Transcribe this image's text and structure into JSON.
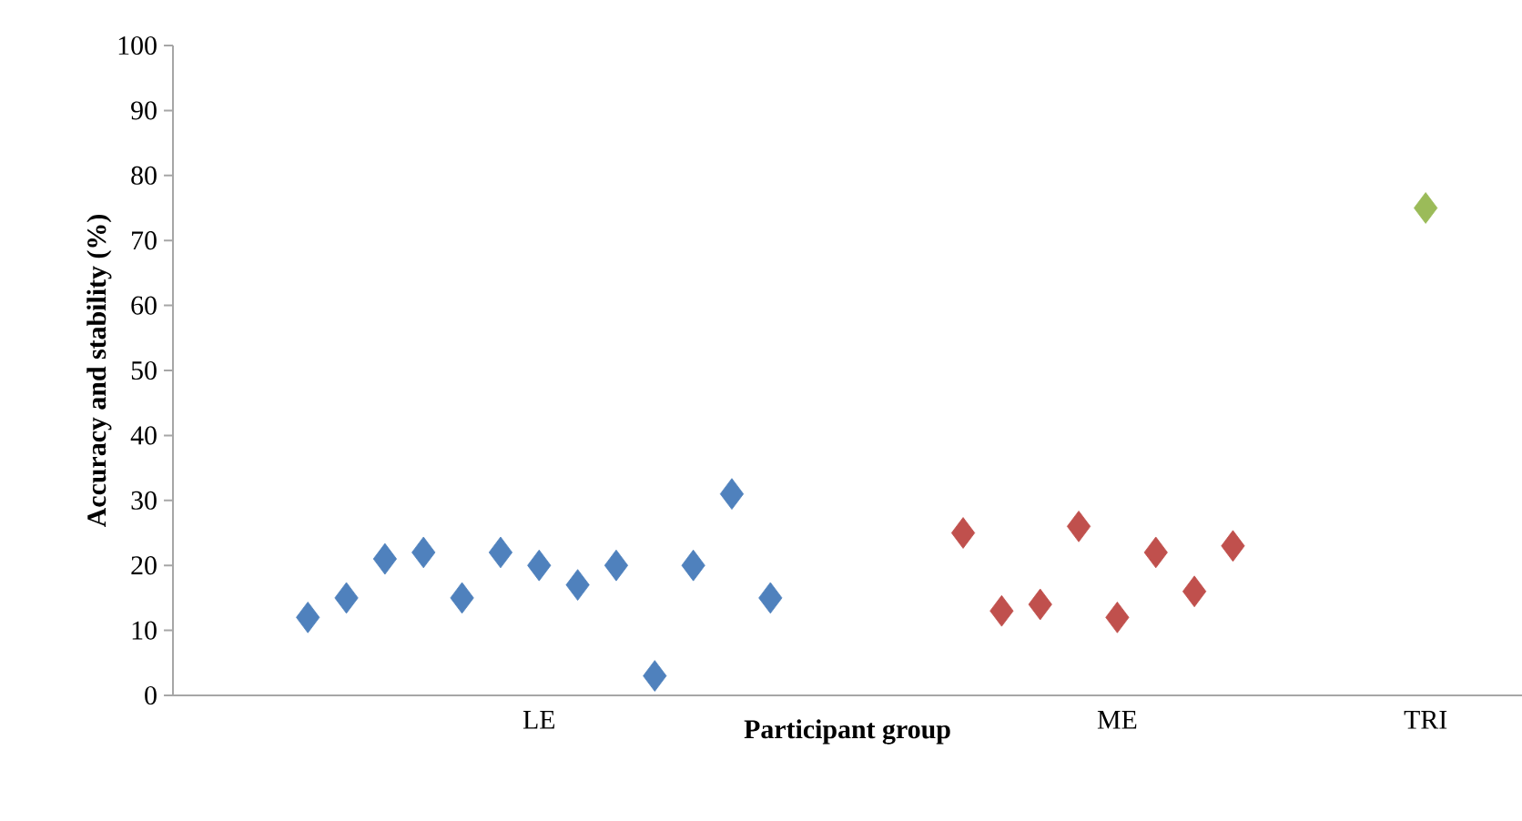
{
  "chart_data": {
    "type": "scatter",
    "xlabel": "Participant group",
    "ylabel": "Accuracy and stability (%)",
    "marker": "diamond",
    "categories": [
      null,
      null,
      null,
      null,
      null,
      null,
      null,
      null,
      null,
      "LE",
      null,
      null,
      null,
      null,
      null,
      null,
      null,
      null,
      null,
      null,
      null,
      null,
      null,
      null,
      "ME",
      null,
      null,
      null,
      null,
      null,
      null,
      null,
      "TRI",
      null,
      null
    ],
    "ylim": [
      0,
      100
    ],
    "yticks": [
      0,
      10,
      20,
      30,
      40,
      50,
      60,
      70,
      80,
      90,
      100
    ],
    "series": [
      {
        "color": "#4f81bd",
        "values": [
          null,
          null,
          null,
          12,
          15,
          21,
          22,
          15,
          22,
          20,
          17,
          20,
          3,
          20,
          31,
          15,
          null,
          null,
          null,
          null,
          null,
          null,
          null,
          null,
          null,
          null,
          null,
          null,
          null,
          null,
          null,
          null,
          null,
          null,
          null
        ]
      },
      {
        "color": "#c0504d",
        "values": [
          null,
          null,
          null,
          null,
          null,
          null,
          null,
          null,
          null,
          null,
          null,
          null,
          null,
          null,
          null,
          null,
          null,
          null,
          null,
          null,
          25,
          13,
          14,
          26,
          12,
          22,
          16,
          23,
          null,
          null,
          null,
          null,
          null,
          null,
          null
        ]
      },
      {
        "color": "#9bbb59",
        "values": [
          null,
          null,
          null,
          null,
          null,
          null,
          null,
          null,
          null,
          null,
          null,
          null,
          null,
          null,
          null,
          null,
          null,
          null,
          null,
          null,
          null,
          null,
          null,
          null,
          null,
          null,
          null,
          null,
          null,
          null,
          null,
          null,
          75,
          null,
          null
        ]
      }
    ]
  }
}
